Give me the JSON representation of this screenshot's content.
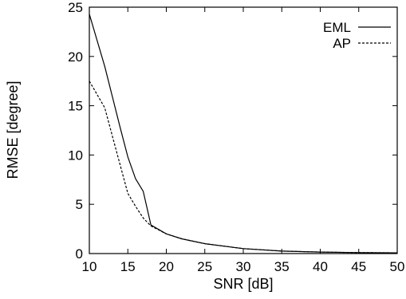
{
  "chart_data": {
    "type": "line",
    "title": "",
    "xlabel": "SNR [dB]",
    "ylabel": "RMSE [degree]",
    "xlim": [
      10,
      50
    ],
    "ylim": [
      0,
      25
    ],
    "xticks": [
      10,
      15,
      20,
      25,
      30,
      35,
      40,
      45,
      50
    ],
    "yticks": [
      0,
      5,
      10,
      15,
      20,
      25
    ],
    "grid": false,
    "legend": "top-right",
    "series": [
      {
        "name": "EML",
        "style": "solid",
        "x": [
          10,
          12,
          14,
          15,
          16,
          17,
          18,
          20,
          22,
          25,
          30,
          35,
          40,
          45,
          50
        ],
        "y": [
          24.3,
          19.0,
          12.8,
          9.8,
          7.6,
          6.3,
          2.9,
          2.0,
          1.5,
          1.0,
          0.5,
          0.25,
          0.15,
          0.1,
          0.07
        ]
      },
      {
        "name": "AP",
        "style": "dashed",
        "x": [
          10,
          12,
          14,
          15,
          16,
          17,
          18,
          20,
          22,
          25,
          30,
          35,
          40,
          45,
          50
        ],
        "y": [
          17.5,
          14.8,
          9.0,
          6.1,
          4.8,
          3.6,
          2.8,
          2.0,
          1.5,
          1.0,
          0.5,
          0.25,
          0.15,
          0.1,
          0.07
        ]
      }
    ]
  }
}
